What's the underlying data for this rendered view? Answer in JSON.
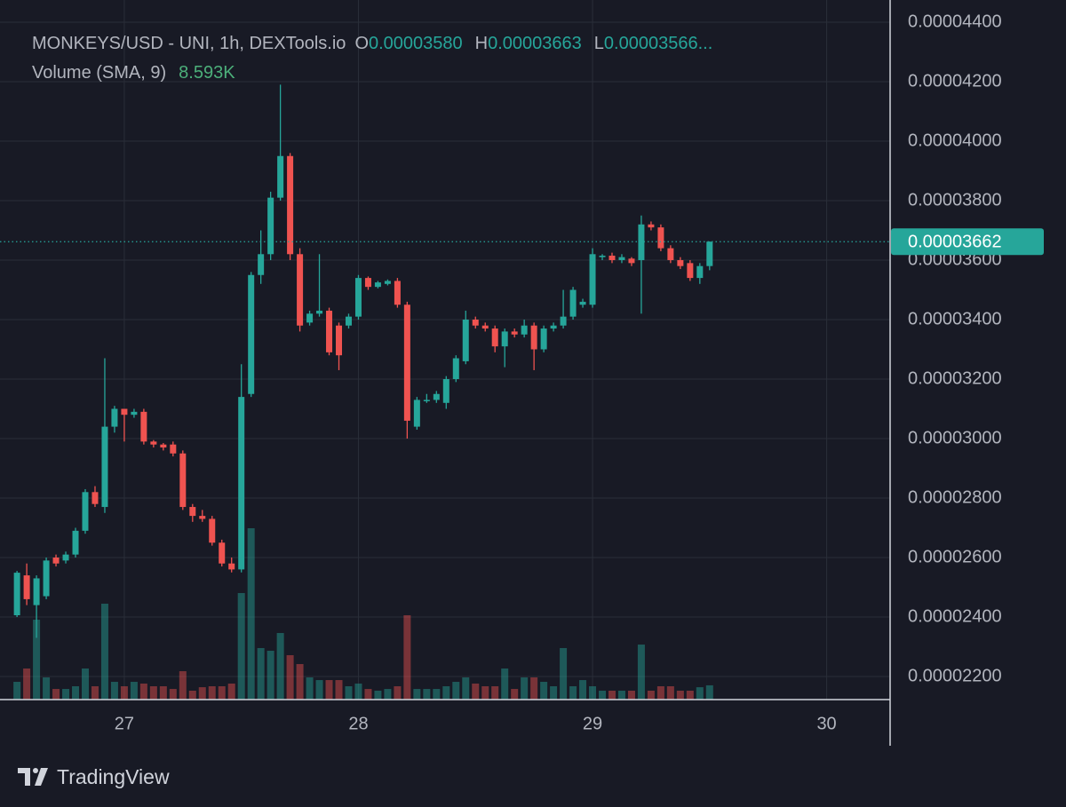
{
  "chart_data": {
    "type": "candlestick",
    "title": "MONKEYS/USD - UNI, 1h, DEXTools.io",
    "ohlc_labels": [
      {
        "key": "O",
        "value": "0.00003580"
      },
      {
        "key": "H",
        "value": "0.00003663"
      },
      {
        "key": "L",
        "value": "0.00003566..."
      }
    ],
    "volume_label": "Volume (SMA, 9)",
    "volume_sma": "8.593K",
    "up_color": "#26a69a",
    "down_color": "#ef5350",
    "x": [
      26.5417,
      26.5833,
      26.625,
      26.6667,
      26.7083,
      26.75,
      26.7917,
      26.8333,
      26.875,
      26.9167,
      26.9583,
      27,
      27.0417,
      27.0833,
      27.125,
      27.1667,
      27.2083,
      27.25,
      27.2917,
      27.3333,
      27.375,
      27.4167,
      27.4583,
      27.5,
      27.5417,
      27.5833,
      27.625,
      27.6667,
      27.7083,
      27.75,
      27.7917,
      27.8333,
      27.875,
      27.9167,
      27.9583,
      28,
      28.0417,
      28.0833,
      28.125,
      28.1667,
      28.2083,
      28.25,
      28.2917,
      28.3333,
      28.375,
      28.4167,
      28.4583,
      28.5,
      28.5417,
      28.5833,
      28.625,
      28.6667,
      28.7083,
      28.75,
      28.7917,
      28.8333,
      28.875,
      28.9167,
      28.9583,
      29,
      29.0417,
      29.0833,
      29.125,
      29.1667,
      29.2083,
      29.25,
      29.2917,
      29.3333,
      29.375,
      29.4167,
      29.4583,
      29.5
    ],
    "open": [
      2.406e-05,
      2.54e-05,
      2.44e-05,
      2.47e-05,
      2.6e-05,
      2.59e-05,
      2.61e-05,
      2.69e-05,
      2.82e-05,
      2.77e-05,
      3.04e-05,
      3.1e-05,
      3.08e-05,
      3.09e-05,
      2.99e-05,
      2.98e-05,
      2.98e-05,
      2.95e-05,
      2.77e-05,
      2.74e-05,
      2.73e-05,
      2.65e-05,
      2.58e-05,
      2.56e-05,
      3.15e-05,
      3.55e-05,
      3.62e-05,
      3.81e-05,
      3.95e-05,
      3.62e-05,
      3.39e-05,
      3.42e-05,
      3.43e-05,
      3.38e-05,
      3.38e-05,
      3.41e-05,
      3.54e-05,
      3.51e-05,
      3.52e-05,
      3.53e-05,
      3.45e-05,
      3.04e-05,
      3.13e-05,
      3.13e-05,
      3.12e-05,
      3.2e-05,
      3.26e-05,
      3.4e-05,
      3.38e-05,
      3.37e-05,
      3.31e-05,
      3.36e-05,
      3.35e-05,
      3.38e-05,
      3.3e-05,
      3.37e-05,
      3.38e-05,
      3.41e-05,
      3.45e-05,
      3.45e-05,
      3.61e-05,
      3.615e-05,
      3.6e-05,
      3.605e-05,
      3.6e-05,
      3.72e-05,
      3.71e-05,
      3.64e-05,
      3.6e-05,
      3.59e-05,
      3.54e-05,
      3.58e-05
    ],
    "high": [
      2.555e-05,
      2.58e-05,
      2.54e-05,
      2.6e-05,
      2.61e-05,
      2.62e-05,
      2.7e-05,
      2.83e-05,
      2.84e-05,
      3.27e-05,
      3.11e-05,
      3.1e-05,
      3.1e-05,
      3.1e-05,
      2.995e-05,
      2.985e-05,
      2.99e-05,
      2.96e-05,
      2.78e-05,
      2.76e-05,
      2.74e-05,
      2.66e-05,
      2.6e-05,
      3.25e-05,
      3.56e-05,
      3.7e-05,
      3.83e-05,
      4.19e-05,
      3.96e-05,
      3.64e-05,
      3.43e-05,
      3.62e-05,
      3.44e-05,
      3.39e-05,
      3.42e-05,
      3.55e-05,
      3.545e-05,
      3.53e-05,
      3.535e-05,
      3.54e-05,
      3.46e-05,
      3.14e-05,
      3.15e-05,
      3.16e-05,
      3.21e-05,
      3.28e-05,
      3.43e-05,
      3.41e-05,
      3.39e-05,
      3.38e-05,
      3.37e-05,
      3.37e-05,
      3.4e-05,
      3.39e-05,
      3.38e-05,
      3.39e-05,
      3.5e-05,
      3.51e-05,
      3.47e-05,
      3.64e-05,
      3.62e-05,
      3.625e-05,
      3.62e-05,
      3.61e-05,
      3.75e-05,
      3.73e-05,
      3.72e-05,
      3.65e-05,
      3.61e-05,
      3.6e-05,
      3.59e-05,
      3.663e-05
    ],
    "low": [
      2.4e-05,
      2.44e-05,
      2.33e-05,
      2.46e-05,
      2.57e-05,
      2.58e-05,
      2.6e-05,
      2.68e-05,
      2.77e-05,
      2.75e-05,
      3.02e-05,
      2.99e-05,
      3.07e-05,
      2.98e-05,
      2.97e-05,
      2.96e-05,
      2.94e-05,
      2.76e-05,
      2.72e-05,
      2.72e-05,
      2.64e-05,
      2.57e-05,
      2.55e-05,
      2.55e-05,
      3.14e-05,
      3.52e-05,
      3.6e-05,
      3.8e-05,
      3.6e-05,
      3.36e-05,
      3.38e-05,
      3.41e-05,
      3.28e-05,
      3.23e-05,
      3.37e-05,
      3.4e-05,
      3.5e-05,
      3.505e-05,
      3.515e-05,
      3.44e-05,
      3e-05,
      3.03e-05,
      3.12e-05,
      3.12e-05,
      3.1e-05,
      3.19e-05,
      3.25e-05,
      3.37e-05,
      3.36e-05,
      3.29e-05,
      3.24e-05,
      3.34e-05,
      3.34e-05,
      3.23e-05,
      3.29e-05,
      3.36e-05,
      3.37e-05,
      3.4e-05,
      3.44e-05,
      3.44e-05,
      3.6e-05,
      3.59e-05,
      3.59e-05,
      3.58e-05,
      3.42e-05,
      3.7e-05,
      3.63e-05,
      3.59e-05,
      3.57e-05,
      3.53e-05,
      3.52e-05,
      3.566e-05
    ],
    "close": [
      2.549e-05,
      2.46e-05,
      2.53e-05,
      2.59e-05,
      2.58e-05,
      2.61e-05,
      2.69e-05,
      2.82e-05,
      2.78e-05,
      3.04e-05,
      3.1e-05,
      3.08e-05,
      3.09e-05,
      2.99e-05,
      2.98e-05,
      2.97e-05,
      2.95e-05,
      2.77e-05,
      2.74e-05,
      2.73e-05,
      2.65e-05,
      2.58e-05,
      2.56e-05,
      3.14e-05,
      3.55e-05,
      3.62e-05,
      3.81e-05,
      3.95e-05,
      3.62e-05,
      3.38e-05,
      3.42e-05,
      3.43e-05,
      3.29e-05,
      3.28e-05,
      3.41e-05,
      3.54e-05,
      3.51e-05,
      3.525e-05,
      3.53e-05,
      3.45e-05,
      3.06e-05,
      3.13e-05,
      3.13e-05,
      3.15e-05,
      3.2e-05,
      3.27e-05,
      3.4e-05,
      3.38e-05,
      3.37e-05,
      3.31e-05,
      3.36e-05,
      3.35e-05,
      3.38e-05,
      3.3e-05,
      3.37e-05,
      3.38e-05,
      3.41e-05,
      3.5e-05,
      3.46e-05,
      3.62e-05,
      3.615e-05,
      3.6e-05,
      3.61e-05,
      3.59e-05,
      3.72e-05,
      3.71e-05,
      3.64e-05,
      3.6e-05,
      3.58e-05,
      3.54e-05,
      3.58e-05,
      3.662e-05
    ],
    "volume": [
      13200,
      23100,
      59400,
      16500,
      7900,
      7900,
      9900,
      23100,
      9900,
      71300,
      13200,
      9900,
      13200,
      11900,
      9900,
      9900,
      7900,
      21100,
      6600,
      9200,
      9900,
      9900,
      11900,
      79200,
      127400,
      38300,
      36300,
      49500,
      33000,
      26400,
      16500,
      14500,
      14500,
      14500,
      9900,
      11900,
      7900,
      6600,
      7900,
      9900,
      62700,
      7900,
      7900,
      7900,
      9900,
      13200,
      16500,
      11900,
      9900,
      9900,
      23100,
      7900,
      16500,
      16500,
      13200,
      9900,
      38300,
      9900,
      14500,
      9900,
      6600,
      6600,
      6600,
      6600,
      40900,
      6600,
      9900,
      9900,
      6600,
      6600,
      9200,
      10600
    ],
    "last_price": {
      "value": 3.662e-05,
      "label": "0.00003662"
    },
    "xlim": [
      26.545,
      30.271
    ],
    "xticks": [
      27,
      28,
      29,
      30
    ],
    "ylim": [
      2.1224e-05,
      4.4746e-05
    ],
    "yticks": [
      {
        "value": 2.2e-05,
        "label": "0.00002200"
      },
      {
        "value": 2.4e-05,
        "label": "0.00002400"
      },
      {
        "value": 2.6e-05,
        "label": "0.00002600"
      },
      {
        "value": 2.8e-05,
        "label": "0.00002800"
      },
      {
        "value": 3e-05,
        "label": "0.00003000"
      },
      {
        "value": 3.2e-05,
        "label": "0.00003200"
      },
      {
        "value": 3.4e-05,
        "label": "0.00003400"
      },
      {
        "value": 3.6e-05,
        "label": "0.00003600"
      },
      {
        "value": 3.8e-05,
        "label": "0.00003800"
      },
      {
        "value": 4e-05,
        "label": "0.00004000"
      },
      {
        "value": 4.2e-05,
        "label": "0.00004200"
      },
      {
        "value": 4.4e-05,
        "label": "0.00004400"
      }
    ],
    "grid": true
  },
  "footer": {
    "brand": "TradingView"
  }
}
